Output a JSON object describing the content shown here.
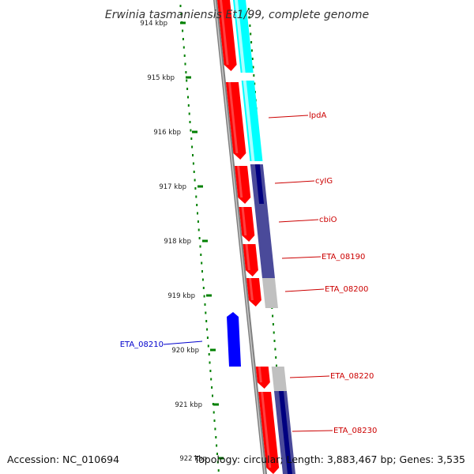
{
  "title": "Erwinia tasmaniensis Et1/99, complete genome",
  "footer": {
    "accession": "Accession: NC_010694",
    "summary": "Topology: circular; Length: 3,883,467 bp; Genes: 3,535"
  },
  "colors": {
    "forward_cds": "#ff0000",
    "reverse_cds": "#0000ff",
    "cog_cyan": "#00ffff",
    "cog_slate": "#4a4a9a",
    "cog_navy": "#000080",
    "cog_gray": "#c0c0c0",
    "gc_skew": "#008000",
    "backbone": "#808080",
    "label_red": "#cc0000",
    "label_blue": "#0000cc"
  },
  "scale_labels": [
    "914 kbp",
    "915 kbp",
    "916 kbp",
    "917 kbp",
    "918 kbp",
    "919 kbp",
    "920 kbp",
    "921 kbp",
    "922 kbp"
  ],
  "gene_labels": [
    {
      "text": "lpdA",
      "strand": "forward"
    },
    {
      "text": "cyIG",
      "strand": "forward"
    },
    {
      "text": "cbiO",
      "strand": "forward"
    },
    {
      "text": "ETA_08190",
      "strand": "forward"
    },
    {
      "text": "ETA_08200",
      "strand": "forward"
    },
    {
      "text": "ETA_08210",
      "strand": "reverse"
    },
    {
      "text": "ETA_08220",
      "strand": "forward"
    },
    {
      "text": "ETA_08230",
      "strand": "forward"
    }
  ]
}
